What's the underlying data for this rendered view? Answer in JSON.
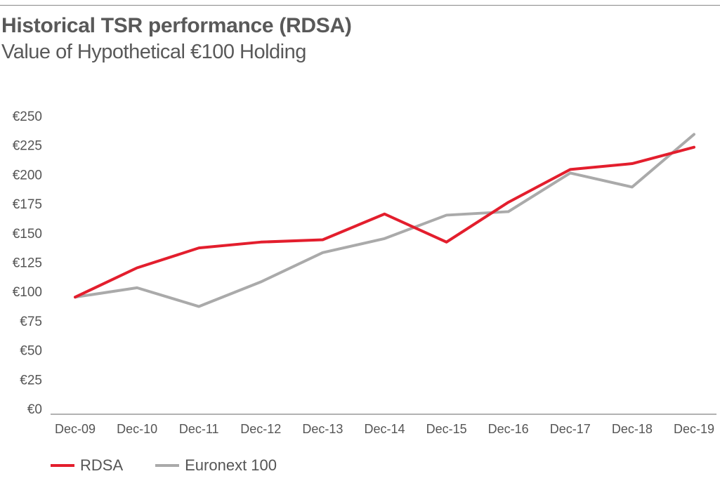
{
  "header": {
    "title": "Historical TSR performance (RDSA)",
    "subtitle": "Value of Hypothetical €100 Holding"
  },
  "chart_data": {
    "type": "line",
    "title": "Historical TSR performance (RDSA)",
    "subtitle": "Value of Hypothetical €100 Holding",
    "xlabel": "",
    "ylabel": "",
    "categories": [
      "Dec-09",
      "Dec-10",
      "Dec-11",
      "Dec-12",
      "Dec-13",
      "Dec-14",
      "Dec-15",
      "Dec-16",
      "Dec-17",
      "Dec-18",
      "Dec-19"
    ],
    "ylim": [
      0,
      250
    ],
    "yticks": [
      0,
      25,
      50,
      75,
      100,
      125,
      150,
      175,
      200,
      225,
      250
    ],
    "ytick_labels": [
      "€0",
      "€25",
      "€50",
      "€75",
      "€100",
      "€125",
      "€150",
      "€175",
      "€200",
      "€225",
      "€250"
    ],
    "grid": false,
    "legend_position": "bottom-left",
    "series": [
      {
        "name": "RDSA",
        "color": "#e31e2d",
        "values": [
          100,
          125,
          142,
          147,
          149,
          171,
          147,
          181,
          209,
          214,
          228
        ]
      },
      {
        "name": "Euronext 100",
        "color": "#aaaaaa",
        "values": [
          100,
          108,
          92,
          113,
          138,
          150,
          170,
          173,
          206,
          194,
          239
        ]
      }
    ]
  }
}
